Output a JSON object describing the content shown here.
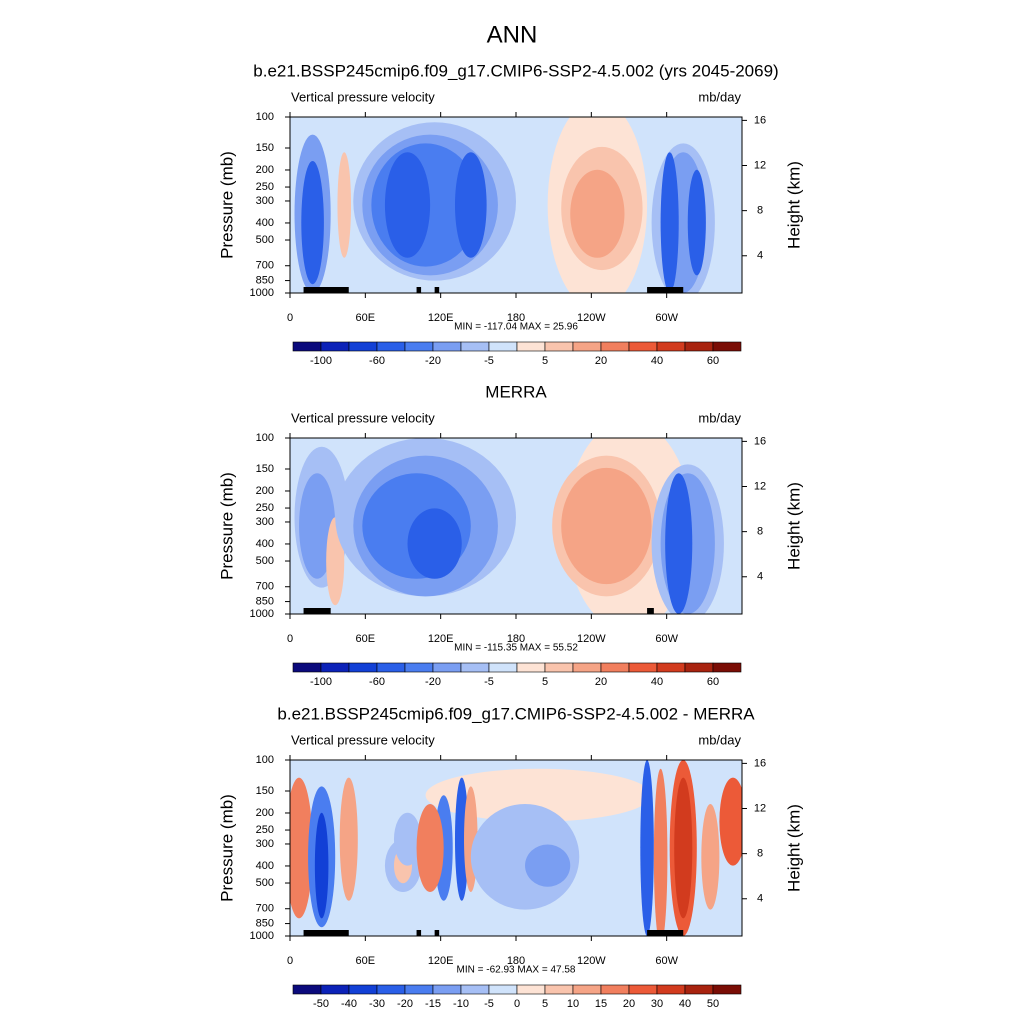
{
  "title": "ANN",
  "chart_data": [
    {
      "type": "contour",
      "title": "b.e21.BSSP245cmip6.f09_g17.CMIP6-SSP2-4.5.002 (yrs 2045-2069)",
      "left_label": "Vertical pressure velocity",
      "right_label": "mb/day",
      "stats": "MIN = -117.04  MAX =  25.96",
      "ylabel": "Pressure (mb)",
      "y2label": "Height (km)",
      "xlim": [
        0,
        360
      ],
      "xticks": [
        0,
        {
          "value": 60,
          "label": "60E"
        },
        {
          "value": 120,
          "label": "120E"
        },
        180,
        {
          "value": 240,
          "label": "120W"
        },
        {
          "value": 300,
          "label": "60W"
        }
      ],
      "ylim": [
        1000,
        100
      ],
      "log_y": true,
      "yticks": [
        100,
        150,
        200,
        250,
        300,
        400,
        500,
        700,
        850,
        1000
      ],
      "y2lim": [
        0.7,
        16.3
      ],
      "y2ticks": [
        4,
        8,
        12,
        16
      ],
      "colorbar": {
        "colors": [
          "#0b0a7c",
          "#0c22b8",
          "#1240d6",
          "#2a5fe8",
          "#4a7df0",
          "#7a9ef2",
          "#a6bff5",
          "#d0e3fb",
          "#fde3d5",
          "#f9c4ad",
          "#f5a486",
          "#f17f5e",
          "#ec5a38",
          "#d23b1e",
          "#a8230f",
          "#7a0d05"
        ],
        "levels": [
          -100,
          null,
          -60,
          null,
          -20,
          null,
          -5,
          null,
          5,
          null,
          20,
          null,
          40,
          null,
          60
        ]
      }
    },
    {
      "type": "contour",
      "title": "MERRA",
      "left_label": "Vertical pressure velocity",
      "right_label": "mb/day",
      "stats": "MIN = -115.35  MAX =  55.52",
      "ylabel": "Pressure (mb)",
      "y2label": "Height (km)",
      "xlim": [
        0,
        360
      ],
      "xticks": [
        0,
        {
          "value": 60,
          "label": "60E"
        },
        {
          "value": 120,
          "label": "120E"
        },
        180,
        {
          "value": 240,
          "label": "120W"
        },
        {
          "value": 300,
          "label": "60W"
        }
      ],
      "ylim": [
        1000,
        100
      ],
      "log_y": true,
      "yticks": [
        100,
        150,
        200,
        250,
        300,
        400,
        500,
        700,
        850,
        1000
      ],
      "y2lim": [
        0.7,
        16.3
      ],
      "y2ticks": [
        4,
        8,
        12,
        16
      ],
      "colorbar": {
        "colors": [
          "#0b0a7c",
          "#0c22b8",
          "#1240d6",
          "#2a5fe8",
          "#4a7df0",
          "#7a9ef2",
          "#a6bff5",
          "#d0e3fb",
          "#fde3d5",
          "#f9c4ad",
          "#f5a486",
          "#f17f5e",
          "#ec5a38",
          "#d23b1e",
          "#a8230f",
          "#7a0d05"
        ],
        "levels": [
          -100,
          null,
          -60,
          null,
          -20,
          null,
          -5,
          null,
          5,
          null,
          20,
          null,
          40,
          null,
          60
        ]
      }
    },
    {
      "type": "contour",
      "title": "b.e21.BSSP245cmip6.f09_g17.CMIP6-SSP2-4.5.002 - MERRA",
      "left_label": "Vertical pressure velocity",
      "right_label": "mb/day",
      "stats": "MIN = -62.93  MAX =  47.58",
      "ylabel": "Pressure (mb)",
      "y2label": "Height (km)",
      "xlim": [
        0,
        360
      ],
      "xticks": [
        0,
        {
          "value": 60,
          "label": "60E"
        },
        {
          "value": 120,
          "label": "120E"
        },
        180,
        {
          "value": 240,
          "label": "120W"
        },
        {
          "value": 300,
          "label": "60W"
        }
      ],
      "ylim": [
        1000,
        100
      ],
      "log_y": true,
      "yticks": [
        100,
        150,
        200,
        250,
        300,
        400,
        500,
        700,
        850,
        1000
      ],
      "y2lim": [
        0.7,
        16.3
      ],
      "y2ticks": [
        4,
        8,
        12,
        16
      ],
      "colorbar": {
        "colors": [
          "#0b0a7c",
          "#0c22b8",
          "#1240d6",
          "#2a5fe8",
          "#4a7df0",
          "#7a9ef2",
          "#a6bff5",
          "#d0e3fb",
          "#fde3d5",
          "#f9c4ad",
          "#f5a486",
          "#f17f5e",
          "#ec5a38",
          "#d23b1e",
          "#a8230f",
          "#7a0d05"
        ],
        "levels": [
          -50,
          -40,
          -30,
          -20,
          -15,
          -10,
          -5,
          0,
          5,
          10,
          15,
          20,
          30,
          40,
          50
        ]
      }
    }
  ]
}
